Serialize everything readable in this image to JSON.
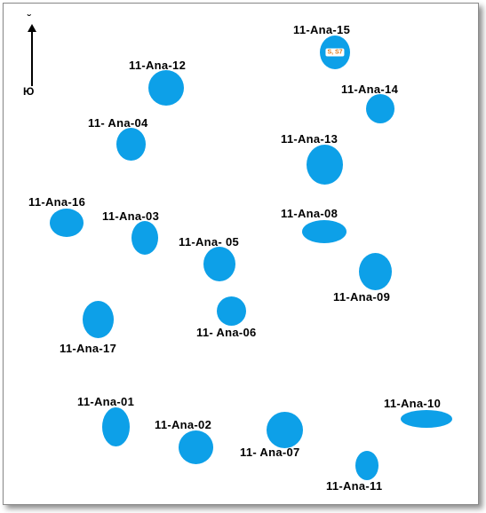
{
  "north": {
    "label": "Ю",
    "mark": "˘"
  },
  "sites": {
    "a15": {
      "name": "11-Ana-15",
      "note": "S, S7"
    },
    "a12": {
      "name": "11-Ana-12"
    },
    "a14": {
      "name": "11-Ana-14"
    },
    "a04": {
      "name": "11- Ana-04"
    },
    "a13": {
      "name": "11-Ana-13"
    },
    "a16": {
      "name": "11-Ana-16"
    },
    "a03": {
      "name": "11-Ana-03"
    },
    "a08": {
      "name": "11-Ana-08"
    },
    "a05": {
      "name": "11-Ana- 05"
    },
    "a09": {
      "name": "11-Ana-09"
    },
    "a06": {
      "name": "11- Ana-06"
    },
    "a17": {
      "name": "11-Ana-17"
    },
    "a01": {
      "name": "11-Ana-01"
    },
    "a10": {
      "name": "11-Ana-10"
    },
    "a02": {
      "name": "11-Ana-02"
    },
    "a07": {
      "name": "11- Ana-07"
    },
    "a11": {
      "name": "11-Ana-11"
    }
  },
  "colors": {
    "site": "#0da0e8",
    "note": "#e07a18"
  }
}
